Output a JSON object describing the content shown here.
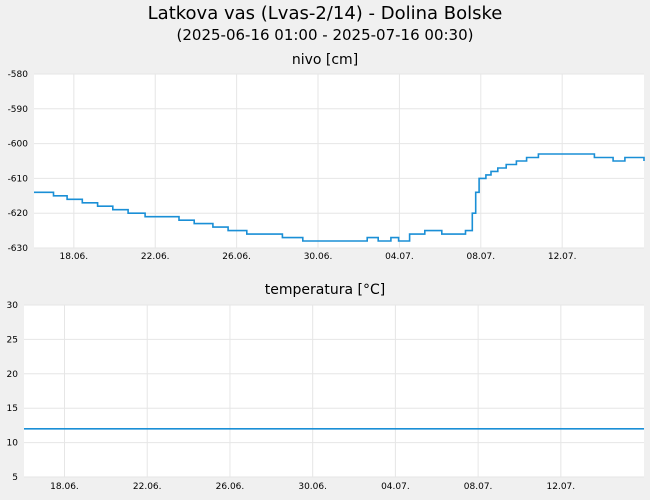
{
  "header": {
    "title": "Latkova vas (Lvas-2/14) - Dolina Bolske",
    "subtitle": "(2025-06-16 01:00 - 2025-07-16 00:30)"
  },
  "chart_data": [
    {
      "type": "line",
      "title": "nivo [cm]",
      "ylim": [
        -630,
        -580
      ],
      "yticks": [
        -580,
        -590,
        -600,
        -610,
        -620,
        -630
      ],
      "xlim": [
        "2025-06-16 01:00",
        "2025-07-16 00:30"
      ],
      "xticks": [
        "18.06.",
        "22.06.",
        "26.06.",
        "30.06.",
        "04.07.",
        "08.07.",
        "12.07."
      ],
      "grid": true,
      "color": "#1a8fd6",
      "series": [
        {
          "x": [
            "2025-06-16 01:00",
            "2025-06-17 00:00",
            "2025-06-17 16:00",
            "2025-06-18 10:00",
            "2025-06-19 04:00",
            "2025-06-19 22:00",
            "2025-06-20 16:00",
            "2025-06-21 12:00",
            "2025-06-22 12:00",
            "2025-06-23 04:00",
            "2025-06-23 22:00",
            "2025-06-24 20:00",
            "2025-06-25 14:00",
            "2025-06-26 12:00",
            "2025-06-27 12:00",
            "2025-06-28 06:00",
            "2025-06-29 06:00",
            "2025-07-01 12:00",
            "2025-07-02 10:00",
            "2025-07-02 23:00",
            "2025-07-03 14:00",
            "2025-07-03 23:00",
            "2025-07-04 04:00",
            "2025-07-04 12:00",
            "2025-07-05 06:00",
            "2025-07-06 02:00",
            "2025-07-06 18:00",
            "2025-07-07 06:00",
            "2025-07-07 14:00",
            "2025-07-07 18:00",
            "2025-07-07 22:00",
            "2025-07-08 06:00",
            "2025-07-08 12:00",
            "2025-07-08 20:00",
            "2025-07-09 06:00",
            "2025-07-09 18:00",
            "2025-07-10 06:00",
            "2025-07-10 20:00",
            "2025-07-11 22:00",
            "2025-07-12 20:00",
            "2025-07-13 14:00",
            "2025-07-13 20:00",
            "2025-07-14 12:00",
            "2025-07-15 02:00",
            "2025-07-16 00:30"
          ],
          "y": [
            -614,
            -615,
            -616,
            -617,
            -618,
            -619,
            -620,
            -621,
            -621,
            -622,
            -623,
            -624,
            -625,
            -626,
            -626,
            -627,
            -628,
            -628,
            -627,
            -628,
            -627,
            -628,
            -628,
            -626,
            -625,
            -626,
            -626,
            -625,
            -620,
            -614,
            -610,
            -609,
            -608,
            -607,
            -606,
            -605,
            -604,
            -603,
            -603,
            -603,
            -604,
            -604,
            -605,
            -604,
            -605
          ]
        }
      ]
    },
    {
      "type": "line",
      "title": "temperatura [°C]",
      "ylim": [
        5,
        30
      ],
      "yticks": [
        30,
        25,
        20,
        15,
        10,
        5
      ],
      "xlim": [
        "2025-06-16 01:00",
        "2025-07-16 00:30"
      ],
      "xticks": [
        "18.06.",
        "22.06.",
        "26.06.",
        "30.06.",
        "04.07.",
        "08.07.",
        "12.07."
      ],
      "grid": true,
      "color": "#1a8fd6",
      "series": [
        {
          "x": [
            "2025-06-16 01:00",
            "2025-07-16 00:30"
          ],
          "y": [
            12,
            12
          ]
        }
      ]
    }
  ]
}
